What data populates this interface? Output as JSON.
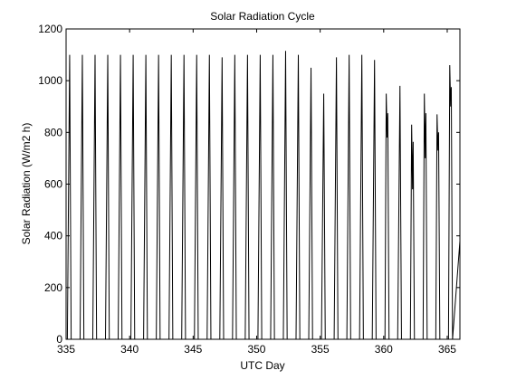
{
  "chart_data": {
    "type": "line",
    "title": "Solar Radiation Cycle",
    "xlabel": "UTC Day",
    "ylabel": "Solar Radiation (W/m2 h)",
    "xlim": [
      335,
      366
    ],
    "ylim": [
      0,
      1200
    ],
    "xticks": [
      335,
      340,
      345,
      350,
      355,
      360,
      365
    ],
    "yticks": [
      0,
      200,
      400,
      600,
      800,
      1000,
      1200
    ],
    "grid": false,
    "line_color": "#000000",
    "series": [
      {
        "daily_peaks": [
          {
            "day": 335,
            "peaks": [
              1100
            ]
          },
          {
            "day": 336,
            "peaks": [
              1100
            ]
          },
          {
            "day": 337,
            "peaks": [
              1100
            ]
          },
          {
            "day": 338,
            "peaks": [
              1100
            ]
          },
          {
            "day": 339,
            "peaks": [
              1100
            ]
          },
          {
            "day": 340,
            "peaks": [
              1100
            ]
          },
          {
            "day": 341,
            "peaks": [
              1100
            ]
          },
          {
            "day": 342,
            "peaks": [
              1100
            ]
          },
          {
            "day": 343,
            "peaks": [
              1100
            ]
          },
          {
            "day": 344,
            "peaks": [
              1100
            ]
          },
          {
            "day": 345,
            "peaks": [
              1100
            ]
          },
          {
            "day": 346,
            "peaks": [
              1100
            ]
          },
          {
            "day": 347,
            "peaks": [
              1090
            ]
          },
          {
            "day": 348,
            "peaks": [
              1100
            ]
          },
          {
            "day": 349,
            "peaks": [
              1100
            ]
          },
          {
            "day": 350,
            "peaks": [
              1100
            ]
          },
          {
            "day": 351,
            "peaks": [
              1100
            ]
          },
          {
            "day": 352,
            "peaks": [
              1115
            ]
          },
          {
            "day": 353,
            "peaks": [
              1100
            ]
          },
          {
            "day": 354,
            "peaks": [
              1050
            ]
          },
          {
            "day": 355,
            "peaks": [
              950
            ]
          },
          {
            "day": 356,
            "peaks": [
              1090
            ]
          },
          {
            "day": 357,
            "peaks": [
              1100
            ]
          },
          {
            "day": 358,
            "peaks": [
              1100
            ]
          },
          {
            "day": 359,
            "peaks": [
              1080
            ]
          },
          {
            "day": 360,
            "peaks": [
              950,
              780
            ]
          },
          {
            "day": 361,
            "peaks": [
              980
            ]
          },
          {
            "day": 362,
            "peaks": [
              830,
              580
            ]
          },
          {
            "day": 363,
            "peaks": [
              950,
              700
            ]
          },
          {
            "day": 364,
            "peaks": [
              870,
              730
            ]
          },
          {
            "day": 365,
            "peaks": [
              1060,
              900
            ]
          }
        ]
      }
    ]
  }
}
